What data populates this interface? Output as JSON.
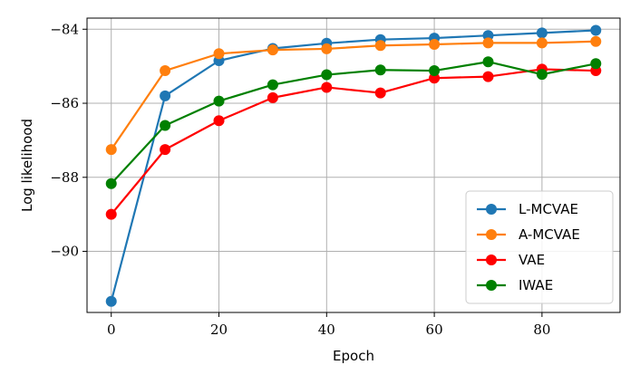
{
  "chart_data": {
    "type": "line",
    "title": "",
    "xlabel": "Epoch",
    "ylabel": "Log likelihood",
    "xlim": [
      -4.5,
      94.5
    ],
    "ylim": [
      -91.65,
      -83.7
    ],
    "xticks": [
      0,
      20,
      40,
      60,
      80
    ],
    "xtick_labels": [
      "0",
      "20",
      "40",
      "60",
      "80"
    ],
    "yticks": [
      -90,
      -88,
      -86,
      -84
    ],
    "ytick_labels": [
      "−90",
      "−88",
      "−86",
      "−84"
    ],
    "grid": true,
    "legend_position": "lower-right",
    "x": [
      0,
      10,
      20,
      30,
      40,
      50,
      60,
      70,
      80,
      90
    ],
    "series": [
      {
        "name": "L-MCVAE",
        "color": "#1f77b4",
        "values": [
          -91.35,
          -85.8,
          -84.85,
          -84.52,
          -84.38,
          -84.28,
          -84.24,
          -84.17,
          -84.1,
          -84.03
        ]
      },
      {
        "name": "A-MCVAE",
        "color": "#ff7f0e",
        "values": [
          -87.25,
          -85.12,
          -84.66,
          -84.56,
          -84.53,
          -84.44,
          -84.41,
          -84.37,
          -84.37,
          -84.33
        ]
      },
      {
        "name": "VAE",
        "color": "#ff0000",
        "values": [
          -89.0,
          -87.25,
          -86.47,
          -85.85,
          -85.57,
          -85.72,
          -85.32,
          -85.28,
          -85.08,
          -85.12
        ]
      },
      {
        "name": "IWAE",
        "color": "#008000",
        "values": [
          -88.17,
          -86.6,
          -85.94,
          -85.5,
          -85.23,
          -85.1,
          -85.12,
          -84.88,
          -85.22,
          -84.93
        ]
      }
    ]
  }
}
